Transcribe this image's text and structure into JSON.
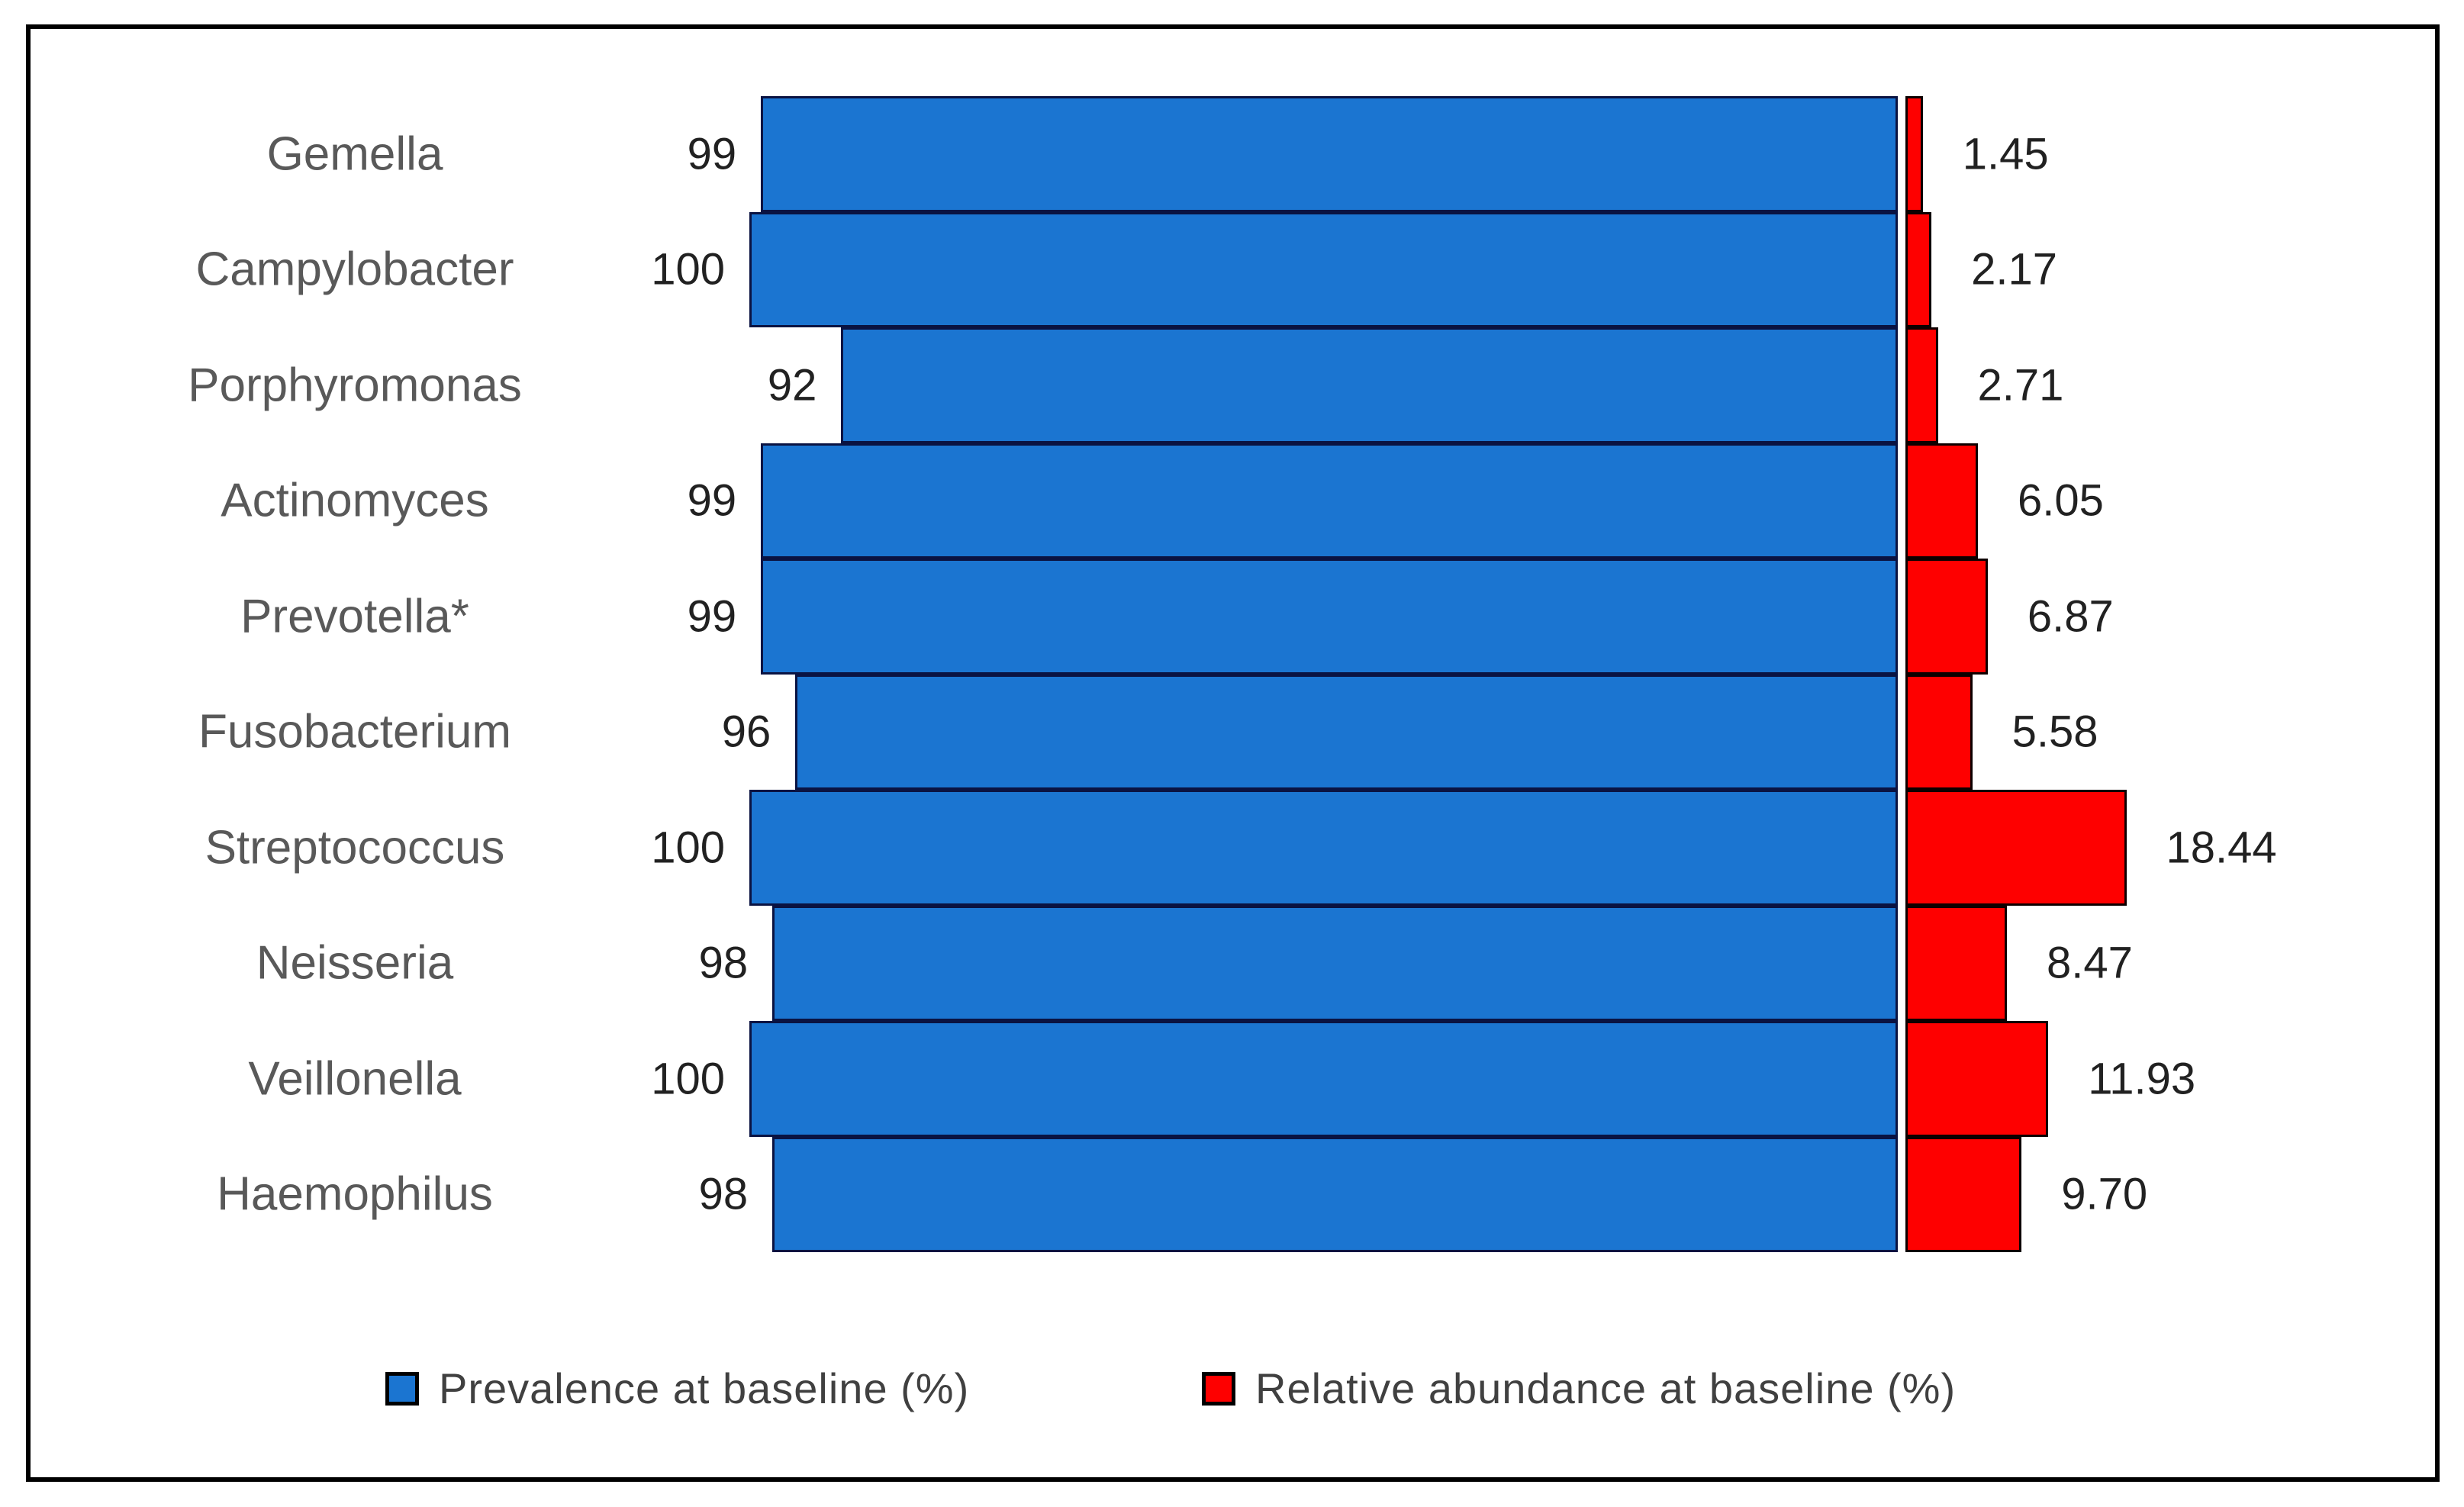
{
  "chart_data": {
    "type": "bar",
    "orientation": "horizontal-diverging",
    "title": "",
    "categories": [
      "Gemella",
      "Campylobacter",
      "Porphyromonas",
      "Actinomyces",
      "Prevotella*",
      "Fusobacterium",
      "Streptococcus",
      "Neisseria",
      "Veillonella",
      "Haemophilus"
    ],
    "series": [
      {
        "name": "Prevalence at baseline (%)",
        "side": "left",
        "color": "#1b75d1",
        "border_color": "#0a1342",
        "values": [
          99,
          100,
          92,
          99,
          99,
          96,
          100,
          98,
          100,
          98
        ],
        "value_labels": [
          "99",
          "100",
          "92",
          "99",
          "99",
          "96",
          "100",
          "98",
          "100",
          "98"
        ]
      },
      {
        "name": "Relative abundance at baseline (%)",
        "side": "right",
        "color": "#fe0000",
        "border_color": "#0d0000",
        "values": [
          1.45,
          2.17,
          2.71,
          6.05,
          6.87,
          5.58,
          18.44,
          8.47,
          11.93,
          9.7
        ],
        "value_labels": [
          "1.45",
          "2.17",
          "2.71",
          "6.05",
          "6.87",
          "5.58",
          "18.44",
          "8.47",
          "11.93",
          "9.70"
        ]
      }
    ],
    "legend_position": "bottom",
    "grid": false,
    "axis": {
      "left_range": [
        0,
        100
      ],
      "right_max_shown": 18.44,
      "tick_labels_shown": false
    },
    "colors": {
      "genus_text": "#595959",
      "value_text": "#212121",
      "legend_text": "#404040",
      "frame_border": "#000000",
      "background": "#ffffff"
    }
  }
}
